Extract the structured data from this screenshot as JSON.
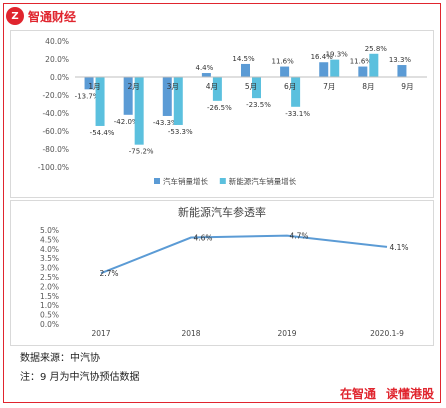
{
  "brand": {
    "logo_glyph": "Z",
    "name": "智通财经",
    "color": "#e0252e"
  },
  "chart_data": [
    {
      "type": "bar",
      "categories": [
        "1月",
        "2月",
        "3月",
        "4月",
        "5月",
        "6月",
        "7月",
        "8月",
        "9月"
      ],
      "series": [
        {
          "name": "汽车销量增长",
          "color": "#5b9bd5",
          "values": [
            -13.7,
            -42.0,
            -43.3,
            4.4,
            14.5,
            11.6,
            16.4,
            11.6,
            13.3
          ],
          "labels": [
            "-13.7%",
            "-42.0%",
            "-43.3%",
            "4.4%",
            "14.5%",
            "11.6%",
            "16.4%",
            "11.6%",
            "13.3%"
          ]
        },
        {
          "name": "新能源汽车销量增长",
          "color": "#5bc0de",
          "values": [
            -54.4,
            -75.2,
            -53.3,
            -26.5,
            -23.5,
            -33.1,
            19.3,
            25.8,
            null
          ],
          "labels": [
            "-54.4%",
            "-75.2%",
            "-53.3%",
            "-26.5%",
            "-23.5%",
            "-33.1%",
            "19.3%",
            "25.8%",
            ""
          ]
        }
      ],
      "yticks": [
        "40.0%",
        "20.0%",
        "0.0%",
        "-20.0%",
        "-40.0%",
        "-60.0%",
        "-80.0%",
        "-100.0%"
      ],
      "ylim": [
        -100,
        40
      ],
      "legend_position": "bottom",
      "grid": false
    },
    {
      "type": "line",
      "title": "新能源汽车参透率",
      "categories": [
        "2017",
        "2018",
        "2019",
        "2020.1-9"
      ],
      "series": [
        {
          "color": "#5b9bd5",
          "values": [
            2.7,
            4.6,
            4.7,
            4.1
          ],
          "labels": [
            "2.7%",
            "4.6%",
            "4.7%",
            "4.1%"
          ]
        }
      ],
      "yticks": [
        "5.0%",
        "4.5%",
        "4.0%",
        "3.5%",
        "3.0%",
        "2.5%",
        "2.0%",
        "1.5%",
        "1.0%",
        "0.5%",
        "0.0%"
      ],
      "ylim": [
        0,
        5
      ],
      "grid": false
    }
  ],
  "notes": {
    "source": "数据来源：中汽协",
    "note": "注：9 月为中汽协预估数据"
  },
  "footer": {
    "slogan_left": "在智通",
    "slogan_right": "读懂港股"
  }
}
